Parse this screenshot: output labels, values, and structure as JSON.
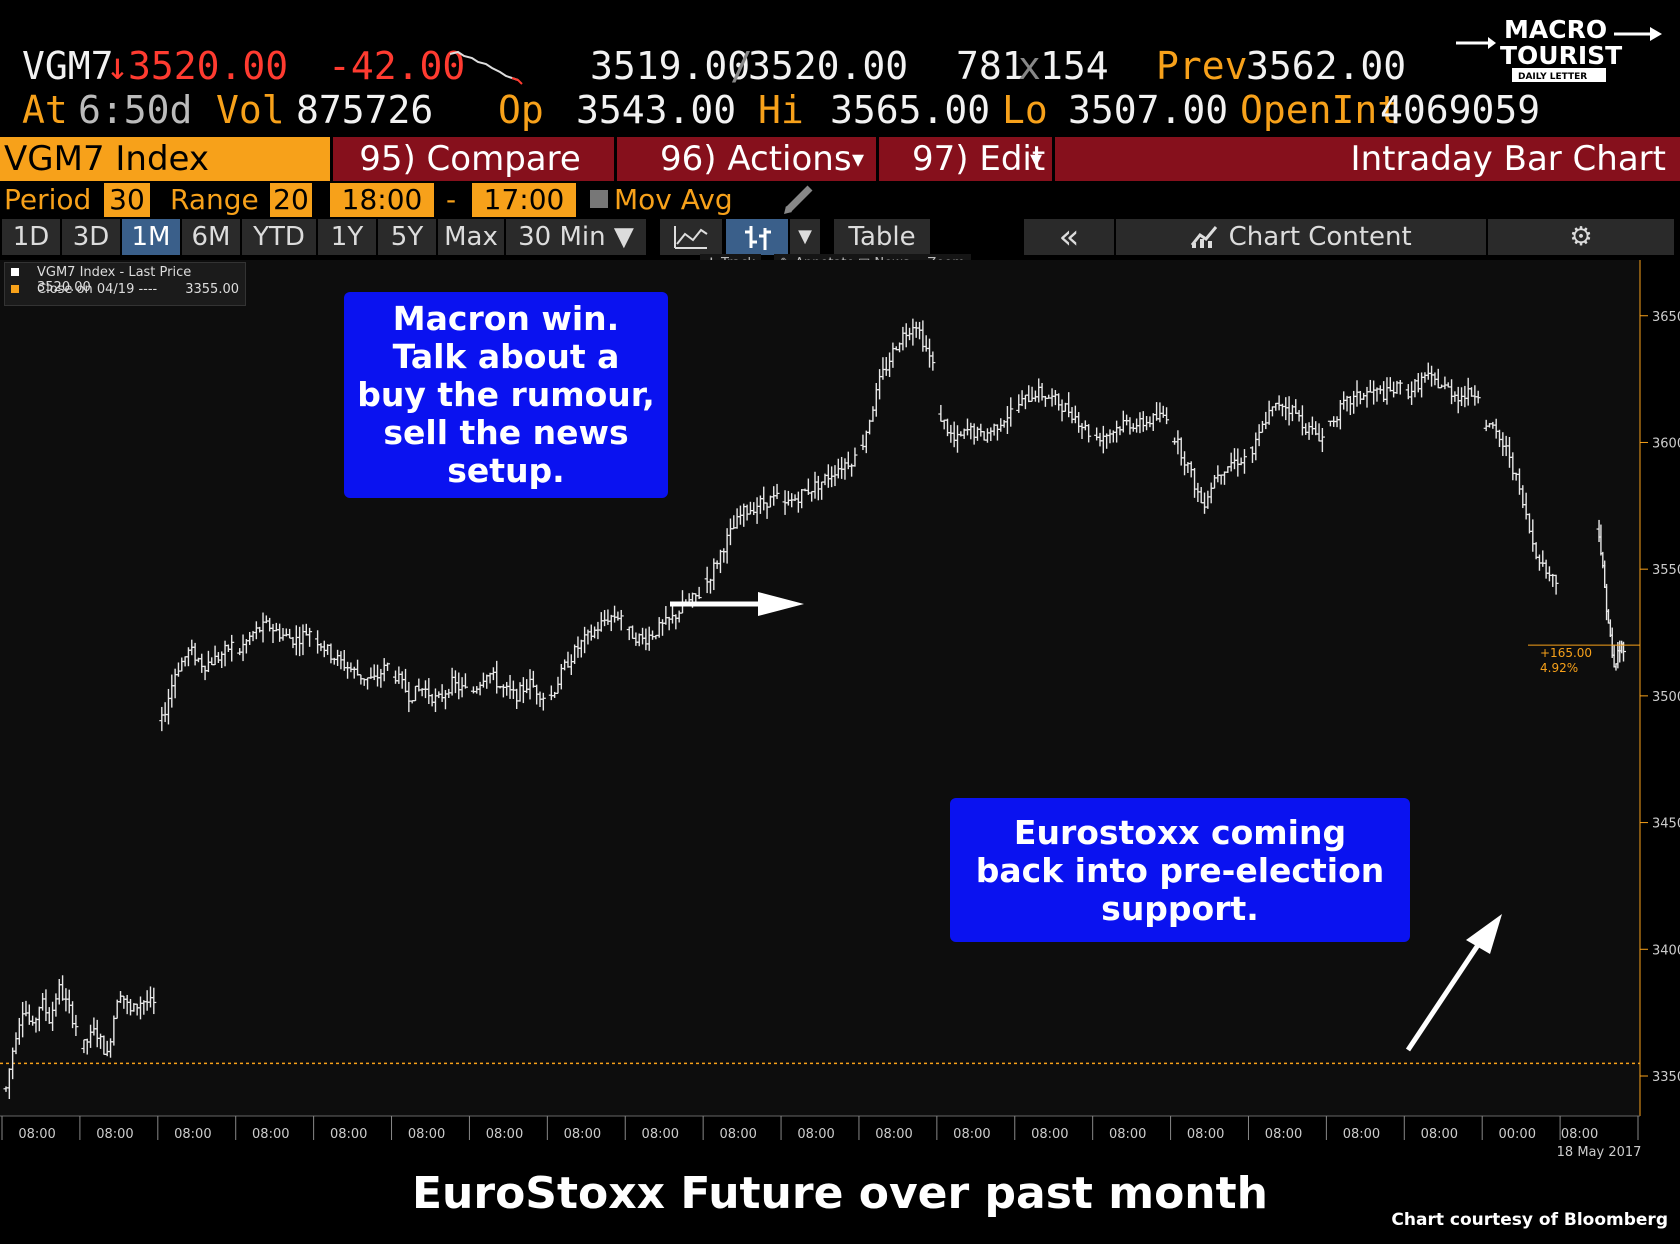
{
  "quote": {
    "ticker": "VGM7",
    "arrow": "↓",
    "last": "3520.00",
    "change": "-42.00",
    "bid_ask_bid": "3519.00",
    "bid_ask_sep": "/",
    "bid_ask_ask": "3520.00",
    "size_bid": "781",
    "size_x": "x",
    "size_ask": "154",
    "prev_label": "Prev",
    "prev_value": "3562.00",
    "at_label": "At",
    "at_value": "6:50d",
    "vol_label": "Vol",
    "vol_value": "875726",
    "op_label": "Op",
    "op_value": "3543.00",
    "hi_label": "Hi",
    "hi_value": "3565.00",
    "lo_label": "Lo",
    "lo_value": "3507.00",
    "oi_label": "OpenInt",
    "oi_value": "4069059"
  },
  "logo": {
    "line1": "MACRO",
    "line2": "TOURIST",
    "line3": "DAILY LETTER"
  },
  "menubar": {
    "ticker_label": "VGM7 Index",
    "compare": "95) Compare",
    "actions": "96) Actions",
    "actions_caret": "▾",
    "edit": "97) Edit",
    "edit_caret": "▾",
    "title": "Intraday Bar Chart"
  },
  "period_row": {
    "period_label": "Period",
    "period_value": "30",
    "range_label": "Range",
    "range_value": "20",
    "start_time": "18:00",
    "dash": "-",
    "end_time": "17:00",
    "mov_avg_label": "Mov Avg"
  },
  "buttons": {
    "ranges": [
      "1D",
      "3D",
      "1M",
      "6M",
      "YTD",
      "1Y",
      "5Y",
      "Max"
    ],
    "active_range": "1M",
    "interval": "30 Min ▼",
    "table": "Table",
    "collapse": "«",
    "chart_content": "Chart Content",
    "settings_icon": "gear-icon"
  },
  "mini_toolbar": {
    "track": "Track",
    "annotate": "Annotate",
    "news": "News",
    "zoom": "Zoom"
  },
  "legend": {
    "line1": "VGM7 Index - Last Price 3520.00",
    "line2_label": "Close on 04/19 ----",
    "line2_value": "3355.00"
  },
  "annotations": {
    "macron": [
      "Macron win.",
      "Talk about a",
      "buy the rumour,",
      "sell the news",
      "setup."
    ],
    "eurostoxx": [
      "Eurostoxx coming",
      "back into pre-election",
      "support."
    ]
  },
  "caption": "EuroStoxx Future over past month",
  "credit": "Chart courtesy of Bloomberg",
  "colors": {
    "accent": "#f7a11a",
    "menubar": "#86101c",
    "callout": "#0a12f0",
    "down": "#ff3b30"
  },
  "chart_data": {
    "type": "bar",
    "subtype": "ohlc-intraday",
    "title": "",
    "xlabel": "",
    "ylabel": "",
    "ylim": [
      3335,
      3672
    ],
    "y_ticks": [
      3350,
      3400,
      3450,
      3500,
      3550,
      3600,
      3650
    ],
    "x_tick_labels": [
      "08:00",
      "08:00",
      "08:00",
      "08:00",
      "08:00",
      "08:00",
      "08:00",
      "08:00",
      "08:00",
      "08:00",
      "08:00",
      "08:00",
      "08:00",
      "08:00",
      "08:00",
      "08:00",
      "08:00",
      "08:00",
      "08:00",
      "00:00",
      "08:00"
    ],
    "x_date_label": "18 May 2017",
    "reference_line": {
      "label": "Close on 04/19",
      "value": 3355
    },
    "last_price": 3520,
    "last_change_label": "+165.00",
    "last_change_pct": "4.92%",
    "series": [
      {
        "name": "VGM7 Index - Last Price",
        "sessions": [
          {
            "session": 1,
            "path": [
              3345,
              3365,
              3378,
              3368,
              3380,
              3372,
              3385,
              3378,
              3370
            ]
          },
          {
            "session": 2,
            "path": [
              3362,
              3368,
              3358,
              3385,
              3375,
              3380,
              3378
            ]
          },
          {
            "session": 3,
            "path": [
              3490,
              3510,
              3518,
              3512,
              3515,
              3520
            ]
          },
          {
            "session": 4,
            "path": [
              3518,
              3525,
              3528,
              3524,
              3522,
              3526
            ]
          },
          {
            "session": 5,
            "path": [
              3522,
              3516,
              3512,
              3508,
              3506,
              3512
            ]
          },
          {
            "session": 6,
            "path": [
              3508,
              3500,
              3503,
              3498,
              3505,
              3502
            ]
          },
          {
            "session": 7,
            "path": [
              3502,
              3510,
              3503,
              3500,
              3505,
              3500
            ]
          },
          {
            "session": 8,
            "path": [
              3500,
              3512,
              3520,
              3525,
              3531,
              3532
            ]
          },
          {
            "session": 9,
            "path": [
              3525,
              3522,
              3526,
              3530,
              3536,
              3540
            ]
          },
          {
            "session": 10,
            "path": [
              3545,
              3560,
              3572,
              3576,
              3578
            ]
          },
          {
            "session": 11,
            "path": [
              3575,
              3580,
              3584,
              3590,
              3594
            ]
          },
          {
            "session": 12,
            "path": [
              3600,
              3625,
              3640,
              3648,
              3630
            ]
          },
          {
            "session": 13,
            "path": [
              3610,
              3600,
              3605,
              3602,
              3607,
              3612
            ]
          },
          {
            "session": 14,
            "path": [
              3615,
              3620,
              3617,
              3612,
              3604
            ]
          },
          {
            "session": 15,
            "path": [
              3602,
              3604,
              3608,
              3607,
              3609,
              3611
            ]
          },
          {
            "session": 16,
            "path": [
              3602,
              3590,
              3575,
              3588,
              3592,
              3594
            ]
          },
          {
            "session": 17,
            "path": [
              3596,
              3610,
              3616,
              3612,
              3605,
              3602
            ]
          },
          {
            "session": 18,
            "path": [
              3608,
              3615,
              3618,
              3620,
              3619,
              3622
            ]
          },
          {
            "session": 19,
            "path": [
              3620,
              3626,
              3622,
              3618,
              3620
            ]
          },
          {
            "session": 20,
            "path": [
              3608,
              3602,
              3595,
              3578,
              3560,
              3550,
              3545
            ]
          },
          {
            "session": 21,
            "path": [
              3565,
              3545,
              3528,
              3510,
              3518,
              3520
            ]
          }
        ]
      }
    ]
  }
}
